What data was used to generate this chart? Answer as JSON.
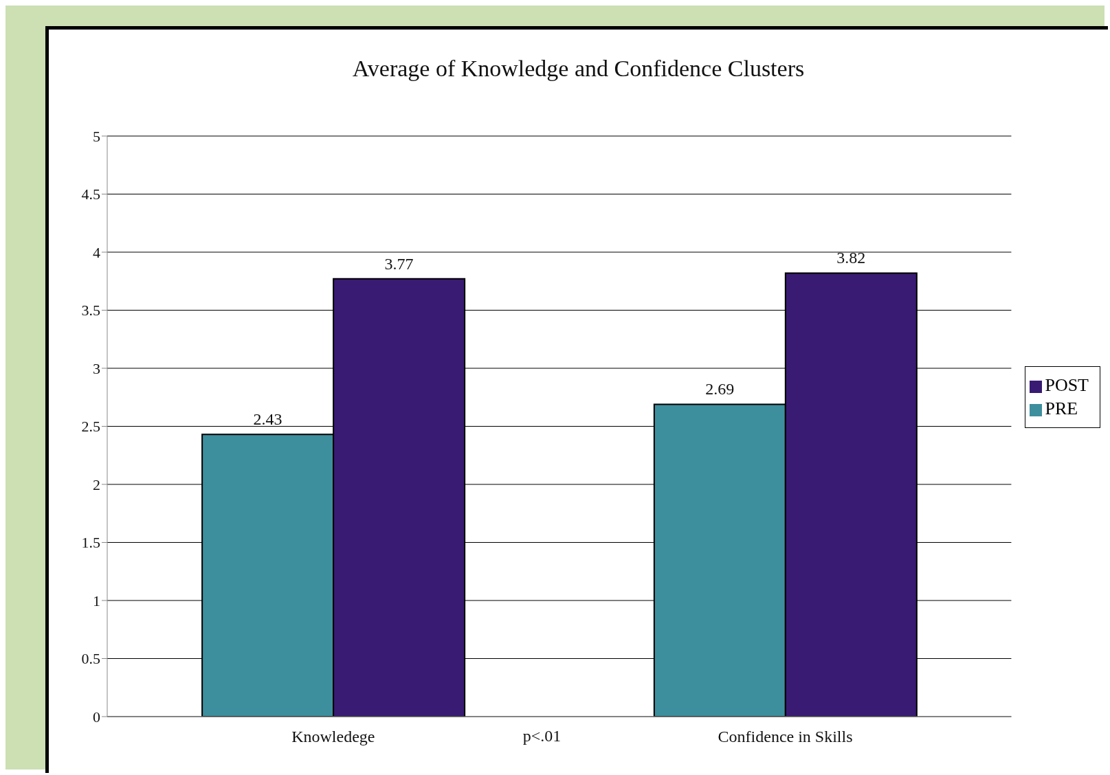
{
  "chart_data": {
    "type": "bar",
    "title": "Average of  Knowledge and Confidence Clusters",
    "categories": [
      "Knowledege",
      "Confidence in Skills"
    ],
    "series": [
      {
        "name": "PRE",
        "color": "#3d8f9d",
        "values": [
          2.43,
          2.69
        ]
      },
      {
        "name": "POST",
        "color": "#391b73",
        "values": [
          3.77,
          3.82
        ]
      }
    ],
    "ylim": [
      0,
      5
    ],
    "yticks": [
      0,
      0.5,
      1,
      1.5,
      2,
      2.5,
      3,
      3.5,
      4,
      4.5,
      5
    ],
    "grid": "y",
    "legend": "right",
    "data_labels": true,
    "annotations": [
      "p<.01"
    ]
  }
}
